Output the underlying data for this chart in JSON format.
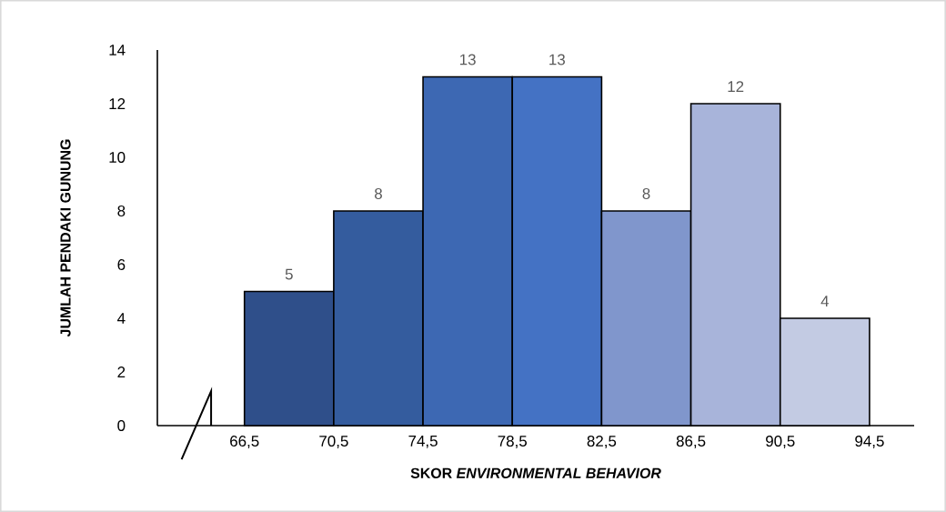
{
  "chart_data": {
    "type": "histogram",
    "bins": [
      66.5,
      70.5,
      74.5,
      78.5,
      82.5,
      86.5,
      90.5,
      94.5
    ],
    "values": [
      5,
      8,
      13,
      13,
      8,
      12,
      4
    ],
    "colors": [
      "#2f4f8a",
      "#345c9e",
      "#3d68b3",
      "#4472c4",
      "#8096cc",
      "#a8b4da",
      "#c3cbe3"
    ],
    "data_labels": true,
    "xlabel": "SKOR *ENVIRONMENTAL BEHAVIOR*",
    "ylabel": "JUMLAH PENDAKI GUNUNG",
    "xlim": [
      62.6,
      96.5
    ],
    "ylim": [
      0,
      14
    ],
    "xticks": [
      {
        "value": 66.5,
        "label": "66,5"
      },
      {
        "value": 70.5,
        "label": "70,5"
      },
      {
        "value": 74.5,
        "label": "74,5"
      },
      {
        "value": 78.5,
        "label": "78,5"
      },
      {
        "value": 82.5,
        "label": "82,5"
      },
      {
        "value": 86.5,
        "label": "86,5"
      },
      {
        "value": 90.5,
        "label": "90,5"
      },
      {
        "value": 94.5,
        "label": "94,5"
      }
    ],
    "yticks": [
      0,
      2,
      4,
      6,
      8,
      10,
      12,
      14
    ],
    "grid": false
  }
}
